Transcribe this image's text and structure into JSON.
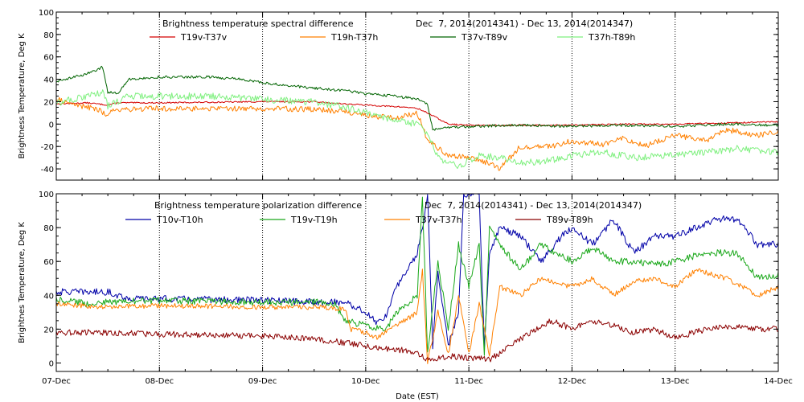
{
  "colors": {
    "red": "#d40000",
    "orange": "#ff8000",
    "darkgreen": "#006400",
    "lightgreen": "#7ff07f",
    "blue": "#0000a8",
    "green": "#1aa81a",
    "maroon": "#8b0000",
    "grid": "#000000"
  },
  "chart_data": [
    {
      "type": "line",
      "title": "Brightness temperature spectral difference",
      "date_range": "Dec  7, 2014(2014341) - Dec 13, 2014(2014347)",
      "ylabel": "Brightness Temperature, Deg K",
      "xlabel": "",
      "ylim": [
        -50,
        100
      ],
      "yticks": [
        -40,
        -20,
        0,
        20,
        40,
        60,
        80,
        100
      ],
      "xlim": [
        0,
        7
      ],
      "grid": true,
      "series": [
        {
          "name": "T19v-T37v",
          "color": "red",
          "noise": 0.6,
          "points": [
            [
              0,
              18
            ],
            [
              0.3,
              19
            ],
            [
              0.5,
              17
            ],
            [
              0.6,
              19
            ],
            [
              1,
              19
            ],
            [
              2,
              20
            ],
            [
              2.5,
              20
            ],
            [
              2.8,
              18
            ],
            [
              3,
              17
            ],
            [
              3.2,
              16
            ],
            [
              3.4,
              15
            ],
            [
              3.5,
              14
            ],
            [
              3.6,
              10
            ],
            [
              3.8,
              0
            ],
            [
              4,
              -1
            ],
            [
              4.5,
              -1
            ],
            [
              5,
              -1
            ],
            [
              5.5,
              0
            ],
            [
              6,
              0
            ],
            [
              6.5,
              1
            ],
            [
              7,
              2
            ]
          ]
        },
        {
          "name": "T19h-T37h",
          "color": "orange",
          "noise": 2.5,
          "points": [
            [
              0,
              22
            ],
            [
              0.2,
              17
            ],
            [
              0.4,
              13
            ],
            [
              0.5,
              8
            ],
            [
              0.55,
              13
            ],
            [
              1,
              14
            ],
            [
              2,
              14
            ],
            [
              2.5,
              13
            ],
            [
              2.8,
              11
            ],
            [
              3,
              8
            ],
            [
              3.3,
              5
            ],
            [
              3.4,
              8
            ],
            [
              3.5,
              10
            ],
            [
              3.6,
              -15
            ],
            [
              3.8,
              -28
            ],
            [
              4,
              -30
            ],
            [
              4.2,
              -35
            ],
            [
              4.3,
              -40
            ],
            [
              4.5,
              -20
            ],
            [
              4.8,
              -20
            ],
            [
              5,
              -15
            ],
            [
              5.3,
              -18
            ],
            [
              5.5,
              -12
            ],
            [
              5.7,
              -20
            ],
            [
              6,
              -10
            ],
            [
              6.3,
              -15
            ],
            [
              6.5,
              -5
            ],
            [
              6.8,
              -10
            ],
            [
              7,
              -6
            ]
          ]
        },
        {
          "name": "T37v-T89v",
          "color": "darkgreen",
          "noise": 1.2,
          "points": [
            [
              0,
              38
            ],
            [
              0.3,
              45
            ],
            [
              0.45,
              51
            ],
            [
              0.48,
              38
            ],
            [
              0.5,
              28
            ],
            [
              0.6,
              28
            ],
            [
              0.7,
              40
            ],
            [
              1,
              42
            ],
            [
              1.5,
              42
            ],
            [
              1.8,
              40
            ],
            [
              2,
              37
            ],
            [
              2.5,
              32
            ],
            [
              2.8,
              30
            ],
            [
              3,
              27
            ],
            [
              3.3,
              25
            ],
            [
              3.5,
              22
            ],
            [
              3.6,
              18
            ],
            [
              3.65,
              -5
            ],
            [
              3.8,
              -3
            ],
            [
              4,
              -2
            ],
            [
              4.5,
              -1
            ],
            [
              5,
              -2
            ],
            [
              5.5,
              -1
            ],
            [
              6,
              -2
            ],
            [
              6.5,
              0
            ],
            [
              7,
              -1
            ]
          ]
        },
        {
          "name": "T37h-T89h",
          "color": "lightgreen",
          "noise": 3.0,
          "points": [
            [
              0,
              19
            ],
            [
              0.3,
              25
            ],
            [
              0.45,
              28
            ],
            [
              0.5,
              16
            ],
            [
              0.7,
              25
            ],
            [
              1,
              25
            ],
            [
              1.5,
              25
            ],
            [
              2,
              22
            ],
            [
              2.5,
              20
            ],
            [
              2.8,
              15
            ],
            [
              3,
              10
            ],
            [
              3.3,
              3
            ],
            [
              3.5,
              0
            ],
            [
              3.6,
              -10
            ],
            [
              3.7,
              -30
            ],
            [
              3.9,
              -38
            ],
            [
              4.1,
              -28
            ],
            [
              4.3,
              -30
            ],
            [
              4.5,
              -35
            ],
            [
              4.8,
              -32
            ],
            [
              5,
              -28
            ],
            [
              5.3,
              -25
            ],
            [
              5.6,
              -30
            ],
            [
              6,
              -28
            ],
            [
              6.3,
              -25
            ],
            [
              6.6,
              -22
            ],
            [
              7,
              -25
            ]
          ]
        }
      ]
    },
    {
      "type": "line",
      "title": "Brightness temperature polarization difference",
      "date_range": "Dec  7, 2014(2014341) - Dec 13, 2014(2014347)",
      "ylabel": "Brightnes Temperature, Deg K",
      "xlabel": "Date (EST)",
      "ylim": [
        -5,
        100
      ],
      "yticks": [
        0,
        20,
        40,
        60,
        80,
        100
      ],
      "xlim": [
        0,
        7
      ],
      "x_tick_labels": [
        "07-Dec",
        "08-Dec",
        "09-Dec",
        "10-Dec",
        "11-Dec",
        "12-Dec",
        "13-Dec",
        "14-Dec"
      ],
      "grid": true,
      "series": [
        {
          "name": "T10v-T10h",
          "color": "blue",
          "noise": 2.0,
          "points": [
            [
              0,
              42
            ],
            [
              0.5,
              42
            ],
            [
              0.7,
              38
            ],
            [
              1,
              38
            ],
            [
              2,
              37
            ],
            [
              2.5,
              36
            ],
            [
              2.8,
              36
            ],
            [
              3,
              30
            ],
            [
              3.1,
              24
            ],
            [
              3.2,
              28
            ],
            [
              3.3,
              45
            ],
            [
              3.5,
              65
            ],
            [
              3.55,
              80
            ],
            [
              3.6,
              100
            ],
            [
              3.65,
              10
            ],
            [
              3.7,
              55
            ],
            [
              3.8,
              10
            ],
            [
              3.9,
              30
            ],
            [
              3.95,
              100
            ],
            [
              4.1,
              100
            ],
            [
              4.15,
              10
            ],
            [
              4.2,
              65
            ],
            [
              4.3,
              80
            ],
            [
              4.5,
              75
            ],
            [
              4.7,
              60
            ],
            [
              4.9,
              75
            ],
            [
              5,
              80
            ],
            [
              5.2,
              70
            ],
            [
              5.4,
              85
            ],
            [
              5.6,
              65
            ],
            [
              5.8,
              75
            ],
            [
              6,
              75
            ],
            [
              6.2,
              80
            ],
            [
              6.4,
              85
            ],
            [
              6.6,
              85
            ],
            [
              6.8,
              70
            ],
            [
              7,
              70
            ]
          ]
        },
        {
          "name": "T19v-T19h",
          "color": "green",
          "noise": 2.0,
          "points": [
            [
              0,
              38
            ],
            [
              0.3,
              35
            ],
            [
              0.5,
              36
            ],
            [
              1,
              37
            ],
            [
              2,
              36
            ],
            [
              2.5,
              36
            ],
            [
              2.7,
              35
            ],
            [
              2.8,
              25
            ],
            [
              3,
              22
            ],
            [
              3.2,
              20
            ],
            [
              3.3,
              30
            ],
            [
              3.5,
              40
            ],
            [
              3.55,
              98
            ],
            [
              3.6,
              5
            ],
            [
              3.7,
              60
            ],
            [
              3.8,
              20
            ],
            [
              3.9,
              70
            ],
            [
              4,
              45
            ],
            [
              4.1,
              70
            ],
            [
              4.15,
              5
            ],
            [
              4.2,
              80
            ],
            [
              4.3,
              70
            ],
            [
              4.5,
              55
            ],
            [
              4.7,
              70
            ],
            [
              5,
              60
            ],
            [
              5.2,
              68
            ],
            [
              5.4,
              60
            ],
            [
              5.6,
              60
            ],
            [
              5.8,
              58
            ],
            [
              6,
              60
            ],
            [
              6.3,
              65
            ],
            [
              6.6,
              65
            ],
            [
              6.8,
              50
            ],
            [
              7,
              52
            ]
          ]
        },
        {
          "name": "T37v-T37h",
          "color": "orange",
          "noise": 1.5,
          "points": [
            [
              0,
              35
            ],
            [
              0.5,
              33
            ],
            [
              1,
              34
            ],
            [
              2,
              33
            ],
            [
              2.5,
              33
            ],
            [
              2.8,
              32
            ],
            [
              2.85,
              20
            ],
            [
              3,
              18
            ],
            [
              3.1,
              15
            ],
            [
              3.3,
              22
            ],
            [
              3.5,
              30
            ],
            [
              3.55,
              55
            ],
            [
              3.6,
              0
            ],
            [
              3.7,
              30
            ],
            [
              3.8,
              5
            ],
            [
              3.9,
              40
            ],
            [
              4,
              5
            ],
            [
              4.1,
              35
            ],
            [
              4.2,
              5
            ],
            [
              4.3,
              45
            ],
            [
              4.5,
              40
            ],
            [
              4.7,
              50
            ],
            [
              5,
              45
            ],
            [
              5.2,
              50
            ],
            [
              5.4,
              40
            ],
            [
              5.6,
              48
            ],
            [
              5.8,
              50
            ],
            [
              6,
              45
            ],
            [
              6.2,
              55
            ],
            [
              6.5,
              50
            ],
            [
              6.8,
              40
            ],
            [
              7,
              45
            ]
          ]
        },
        {
          "name": "T89v-T89h",
          "color": "maroon",
          "noise": 1.8,
          "points": [
            [
              0,
              18
            ],
            [
              0.5,
              18
            ],
            [
              1,
              17
            ],
            [
              2,
              16
            ],
            [
              2.5,
              14
            ],
            [
              2.8,
              12
            ],
            [
              3,
              10
            ],
            [
              3.3,
              8
            ],
            [
              3.5,
              6
            ],
            [
              3.6,
              2
            ],
            [
              3.8,
              4
            ],
            [
              4,
              3
            ],
            [
              4.2,
              2
            ],
            [
              4.4,
              10
            ],
            [
              4.6,
              18
            ],
            [
              4.8,
              25
            ],
            [
              5,
              20
            ],
            [
              5.2,
              25
            ],
            [
              5.4,
              22
            ],
            [
              5.6,
              18
            ],
            [
              5.8,
              20
            ],
            [
              6,
              15
            ],
            [
              6.3,
              20
            ],
            [
              6.6,
              22
            ],
            [
              6.8,
              20
            ],
            [
              7,
              20
            ]
          ]
        }
      ]
    }
  ]
}
